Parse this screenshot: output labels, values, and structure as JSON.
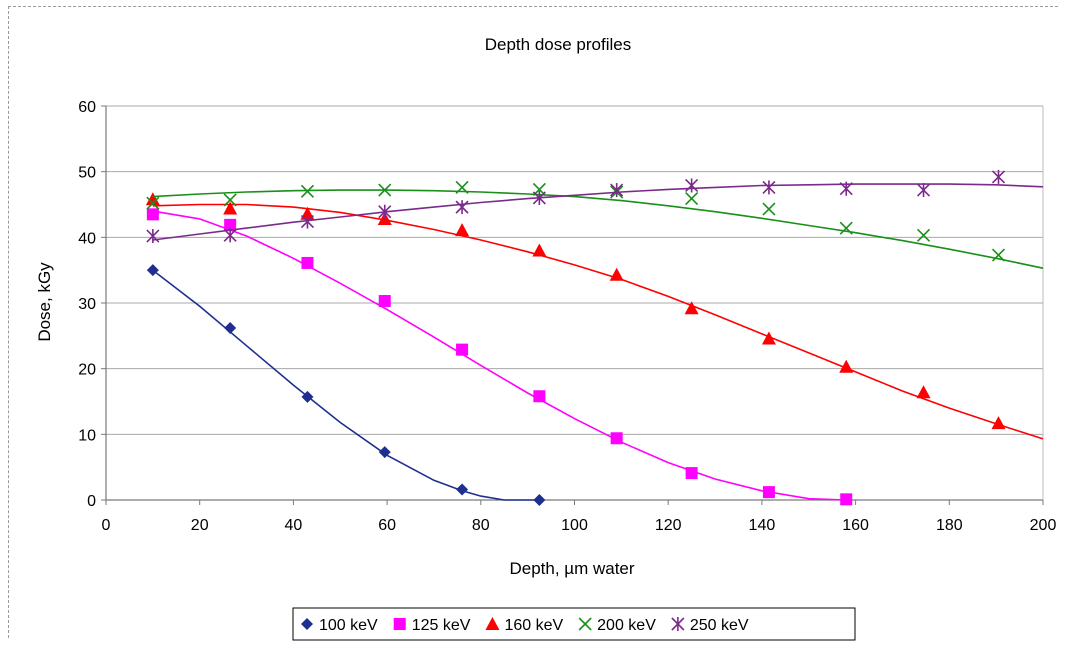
{
  "chart_data": {
    "type": "scatter",
    "title": "Depth dose profiles",
    "xlabel": "Depth, µm water",
    "ylabel": "Dose, kGy",
    "xlim": [
      0,
      200
    ],
    "ylim": [
      0,
      60
    ],
    "xticks": [
      0,
      20,
      40,
      60,
      80,
      100,
      120,
      140,
      160,
      180,
      200
    ],
    "yticks": [
      0,
      10,
      20,
      30,
      40,
      50,
      60
    ],
    "grid": "horizontal",
    "legend_position": "bottom",
    "series": [
      {
        "name": "100 keV",
        "color": "#1f2f8f",
        "marker": "diamond",
        "points": [
          [
            10,
            35.0
          ],
          [
            26.5,
            26.2
          ],
          [
            43,
            15.7
          ],
          [
            59.5,
            7.3
          ],
          [
            76,
            1.6
          ],
          [
            92.5,
            0.0
          ]
        ],
        "fit": [
          [
            10,
            35.0
          ],
          [
            20,
            29.5
          ],
          [
            30,
            23.5
          ],
          [
            40,
            17.5
          ],
          [
            50,
            11.8
          ],
          [
            60,
            6.8
          ],
          [
            70,
            3.0
          ],
          [
            76,
            1.4
          ],
          [
            80,
            0.6
          ],
          [
            85,
            0.0
          ],
          [
            92.5,
            0.0
          ]
        ]
      },
      {
        "name": "125 keV",
        "color": "#ff00ff",
        "marker": "square",
        "points": [
          [
            10,
            43.5
          ],
          [
            26.5,
            41.9
          ],
          [
            43,
            36.1
          ],
          [
            59.5,
            30.3
          ],
          [
            76,
            22.9
          ],
          [
            92.5,
            15.8
          ],
          [
            109,
            9.4
          ],
          [
            125,
            4.1
          ],
          [
            141.5,
            1.2
          ],
          [
            158,
            0.1
          ]
        ],
        "fit": [
          [
            10,
            44.0
          ],
          [
            20,
            42.8
          ],
          [
            30,
            40.2
          ],
          [
            40,
            36.8
          ],
          [
            50,
            33.0
          ],
          [
            60,
            29.0
          ],
          [
            70,
            24.8
          ],
          [
            80,
            20.5
          ],
          [
            90,
            16.3
          ],
          [
            100,
            12.4
          ],
          [
            110,
            8.8
          ],
          [
            120,
            5.7
          ],
          [
            130,
            3.2
          ],
          [
            140,
            1.4
          ],
          [
            150,
            0.2
          ],
          [
            158,
            0.0
          ]
        ]
      },
      {
        "name": "160 keV",
        "color": "#ff0000",
        "marker": "triangle",
        "points": [
          [
            10,
            45.8
          ],
          [
            26.5,
            44.4
          ],
          [
            43,
            43.6
          ],
          [
            59.5,
            42.8
          ],
          [
            76,
            41.1
          ],
          [
            92.5,
            38.0
          ],
          [
            109,
            34.3
          ],
          [
            125,
            29.2
          ],
          [
            141.5,
            24.6
          ],
          [
            158,
            20.3
          ],
          [
            174.5,
            16.4
          ],
          [
            190.5,
            11.7
          ]
        ],
        "fit": [
          [
            10,
            44.8
          ],
          [
            20,
            45.0
          ],
          [
            30,
            45.0
          ],
          [
            40,
            44.6
          ],
          [
            50,
            43.8
          ],
          [
            60,
            42.6
          ],
          [
            70,
            41.2
          ],
          [
            80,
            39.6
          ],
          [
            90,
            37.8
          ],
          [
            100,
            35.8
          ],
          [
            110,
            33.6
          ],
          [
            120,
            31.0
          ],
          [
            130,
            28.2
          ],
          [
            140,
            25.3
          ],
          [
            150,
            22.4
          ],
          [
            160,
            19.5
          ],
          [
            170,
            16.6
          ],
          [
            180,
            14.0
          ],
          [
            190,
            11.6
          ],
          [
            200,
            9.3
          ]
        ]
      },
      {
        "name": "200 keV",
        "color": "#1a8f1a",
        "marker": "x",
        "points": [
          [
            10,
            45.2
          ],
          [
            26.5,
            45.7
          ],
          [
            43,
            47.0
          ],
          [
            59.5,
            47.2
          ],
          [
            76,
            47.6
          ],
          [
            92.5,
            47.3
          ],
          [
            109,
            46.9
          ],
          [
            125,
            45.9
          ],
          [
            141.5,
            44.3
          ],
          [
            158,
            41.4
          ],
          [
            174.5,
            40.3
          ],
          [
            190.5,
            37.3
          ]
        ],
        "fit": [
          [
            10,
            46.2
          ],
          [
            20,
            46.6
          ],
          [
            30,
            46.9
          ],
          [
            40,
            47.1
          ],
          [
            50,
            47.2
          ],
          [
            60,
            47.2
          ],
          [
            70,
            47.1
          ],
          [
            80,
            46.9
          ],
          [
            90,
            46.6
          ],
          [
            100,
            46.2
          ],
          [
            110,
            45.6
          ],
          [
            120,
            44.8
          ],
          [
            130,
            43.9
          ],
          [
            140,
            42.9
          ],
          [
            150,
            41.8
          ],
          [
            160,
            40.7
          ],
          [
            170,
            39.5
          ],
          [
            180,
            38.2
          ],
          [
            190,
            36.8
          ],
          [
            200,
            35.3
          ]
        ]
      },
      {
        "name": "250 keV",
        "color": "#7a2a8a",
        "marker": "asterisk",
        "points": [
          [
            10,
            40.2
          ],
          [
            26.5,
            40.3
          ],
          [
            43,
            42.4
          ],
          [
            59.5,
            43.9
          ],
          [
            76,
            44.6
          ],
          [
            92.5,
            46.0
          ],
          [
            109,
            47.2
          ],
          [
            125,
            47.9
          ],
          [
            141.5,
            47.6
          ],
          [
            158,
            47.4
          ],
          [
            174.5,
            47.2
          ],
          [
            190.5,
            49.2
          ]
        ],
        "fit": [
          [
            10,
            39.6
          ],
          [
            20,
            40.5
          ],
          [
            30,
            41.4
          ],
          [
            40,
            42.3
          ],
          [
            50,
            43.1
          ],
          [
            60,
            43.9
          ],
          [
            70,
            44.6
          ],
          [
            80,
            45.3
          ],
          [
            90,
            45.9
          ],
          [
            100,
            46.4
          ],
          [
            110,
            46.9
          ],
          [
            120,
            47.3
          ],
          [
            130,
            47.6
          ],
          [
            140,
            47.9
          ],
          [
            150,
            48.0
          ],
          [
            160,
            48.1
          ],
          [
            170,
            48.1
          ],
          [
            180,
            48.1
          ],
          [
            190,
            48.0
          ],
          [
            200,
            47.7
          ]
        ]
      }
    ]
  }
}
